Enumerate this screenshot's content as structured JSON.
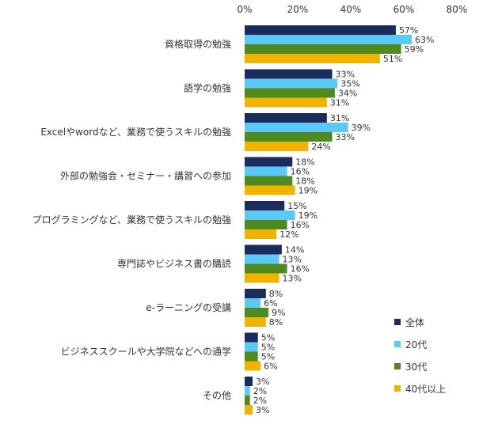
{
  "chart_data": {
    "type": "bar",
    "orientation": "horizontal",
    "xlim": [
      0,
      80
    ],
    "x_ticks": [
      "0%",
      "20%",
      "40%",
      "60%",
      "80%"
    ],
    "grid": false,
    "legend_position": "right",
    "categories": [
      "資格取得の勉強",
      "語学の勉強",
      "Excelやwordなど、業務で使うスキルの勉強",
      "外部の勉強会・セミナー・講習への参加",
      "プログラミングなど、業務で使うスキルの勉強",
      "専門誌やビジネス書の購読",
      "e-ラーニングの受講",
      "ビジネススクールや大学院などへの通学",
      "その他"
    ],
    "series": [
      {
        "name": "全体",
        "color": "#1a2b5c",
        "values": [
          57,
          33,
          31,
          18,
          15,
          14,
          8,
          5,
          3
        ]
      },
      {
        "name": "20代",
        "color": "#5bc8f5",
        "values": [
          63,
          35,
          39,
          16,
          19,
          13,
          6,
          5,
          2
        ]
      },
      {
        "name": "30代",
        "color": "#4f8a1f",
        "values": [
          59,
          34,
          33,
          18,
          16,
          16,
          9,
          5,
          2
        ]
      },
      {
        "name": "40代以上",
        "color": "#f0b400",
        "values": [
          51,
          31,
          24,
          19,
          12,
          13,
          8,
          6,
          3
        ]
      }
    ],
    "value_suffix": "%"
  }
}
